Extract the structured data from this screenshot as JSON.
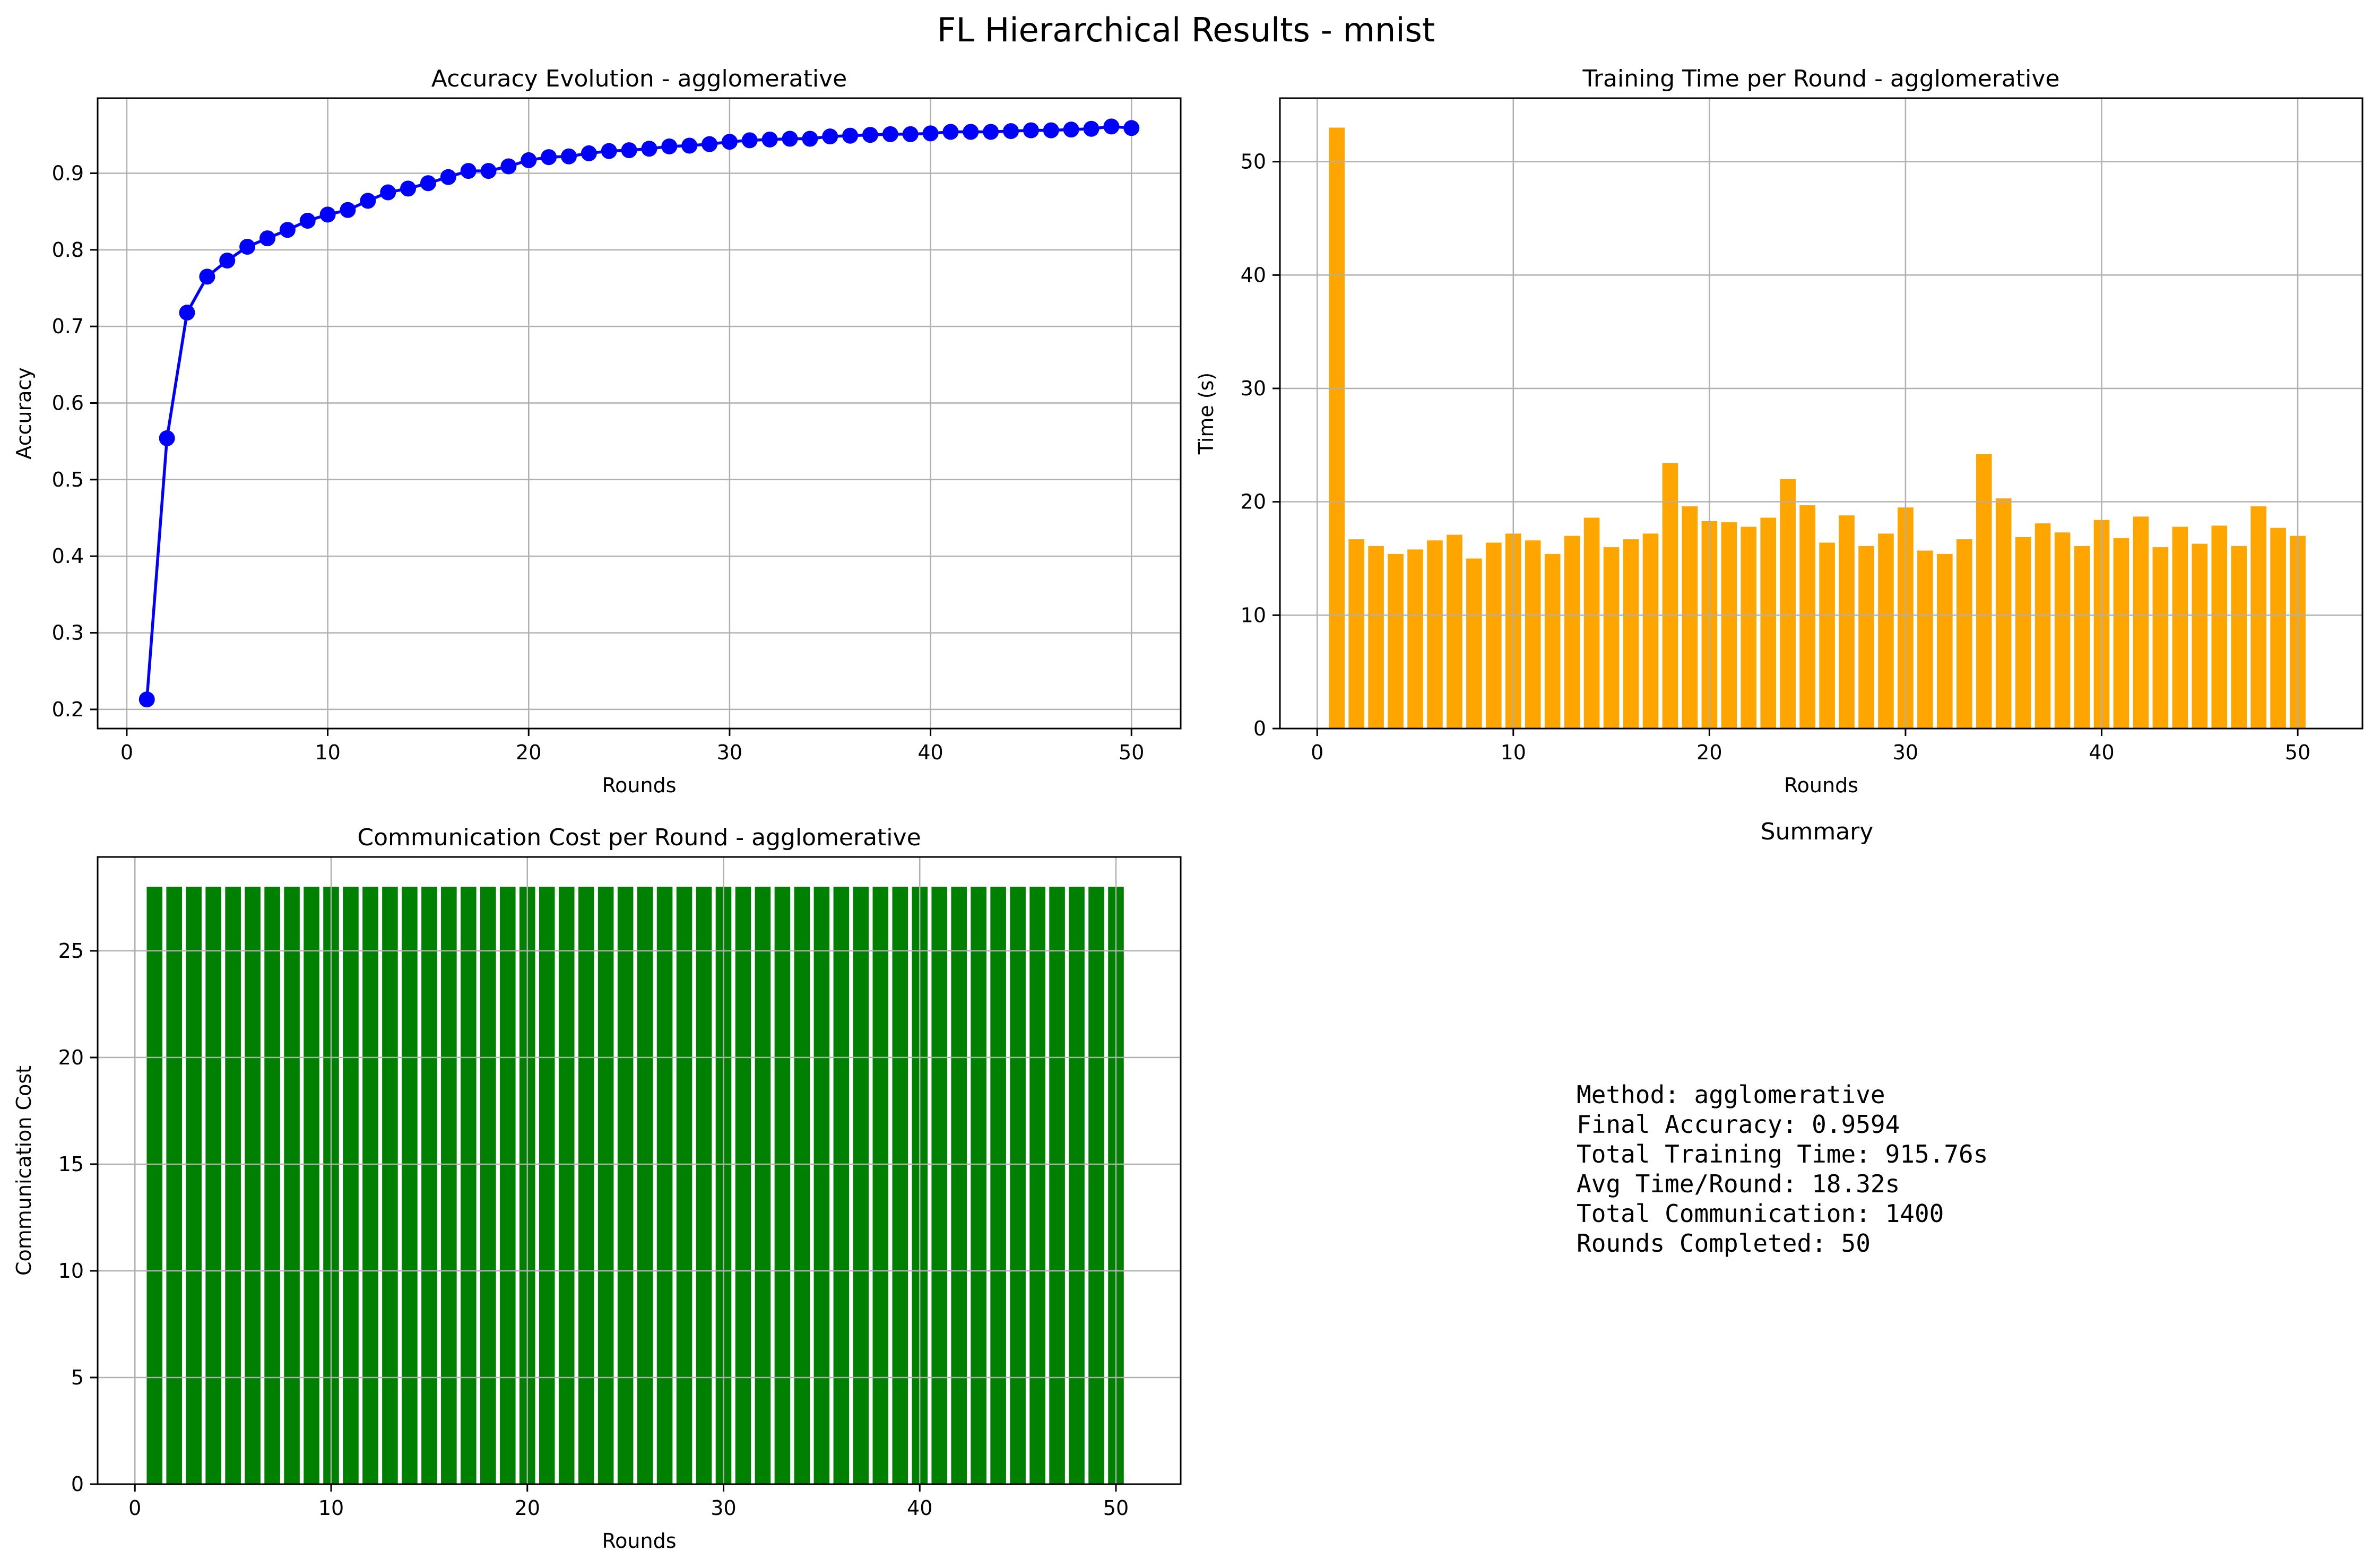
{
  "figure_title": "FL Hierarchical Results - mnist",
  "chart_data": [
    {
      "type": "line",
      "title": "Accuracy Evolution - agglomerative",
      "xlabel": "Rounds",
      "ylabel": "Accuracy",
      "xlim": [
        -1.45,
        52.45
      ],
      "ylim": [
        0.175,
        0.998
      ],
      "xticks": [
        0,
        10,
        20,
        30,
        40,
        50
      ],
      "yticks": [
        0.2,
        0.3,
        0.4,
        0.5,
        0.6,
        0.7,
        0.8,
        0.9
      ],
      "ytick_labels": [
        "0.2",
        "0.3",
        "0.4",
        "0.5",
        "0.6",
        "0.7",
        "0.8",
        "0.9"
      ],
      "grid": true,
      "color": "#0000ff",
      "marker": "circle",
      "x": [
        1,
        2,
        3,
        4,
        5,
        6,
        7,
        8,
        9,
        10,
        11,
        12,
        13,
        14,
        15,
        16,
        17,
        18,
        19,
        20,
        21,
        22,
        23,
        24,
        25,
        26,
        27,
        28,
        29,
        30,
        31,
        32,
        33,
        34,
        35,
        36,
        37,
        38,
        39,
        40,
        41,
        42,
        43,
        44,
        45,
        46,
        47,
        48,
        49,
        50
      ],
      "values": [
        0.213,
        0.554,
        0.718,
        0.765,
        0.786,
        0.804,
        0.815,
        0.826,
        0.838,
        0.846,
        0.852,
        0.864,
        0.875,
        0.88,
        0.887,
        0.895,
        0.903,
        0.903,
        0.909,
        0.917,
        0.921,
        0.922,
        0.926,
        0.929,
        0.93,
        0.932,
        0.935,
        0.936,
        0.938,
        0.941,
        0.943,
        0.944,
        0.945,
        0.945,
        0.948,
        0.949,
        0.95,
        0.951,
        0.951,
        0.952,
        0.954,
        0.954,
        0.954,
        0.955,
        0.956,
        0.956,
        0.957,
        0.958,
        0.961,
        0.959
      ]
    },
    {
      "type": "bar",
      "title": "Training Time per Round - agglomerative",
      "xlabel": "Rounds",
      "ylabel": "Time (s)",
      "xlim": [
        -1.9,
        53.3
      ],
      "ylim": [
        0,
        55.6
      ],
      "xticks": [
        0,
        10,
        20,
        30,
        40,
        50
      ],
      "yticks": [
        0,
        10,
        20,
        30,
        40,
        50
      ],
      "grid": true,
      "color": "#ffa500",
      "x": [
        1,
        2,
        3,
        4,
        5,
        6,
        7,
        8,
        9,
        10,
        11,
        12,
        13,
        14,
        15,
        16,
        17,
        18,
        19,
        20,
        21,
        22,
        23,
        24,
        25,
        26,
        27,
        28,
        29,
        30,
        31,
        32,
        33,
        34,
        35,
        36,
        37,
        38,
        39,
        40,
        41,
        42,
        43,
        44,
        45,
        46,
        47,
        48,
        49,
        50
      ],
      "values": [
        53.0,
        16.7,
        16.1,
        15.4,
        15.8,
        16.6,
        17.1,
        15.0,
        16.4,
        17.2,
        16.6,
        15.4,
        17.0,
        18.6,
        16.0,
        16.7,
        17.2,
        23.4,
        19.6,
        18.3,
        18.2,
        17.8,
        18.6,
        22.0,
        19.7,
        16.4,
        18.8,
        16.1,
        17.2,
        19.5,
        15.7,
        15.4,
        16.7,
        24.2,
        20.3,
        16.9,
        18.1,
        17.3,
        16.1,
        18.4,
        16.8,
        18.7,
        16.0,
        17.8,
        16.3,
        17.9,
        16.1,
        19.6,
        17.7,
        17.0
      ]
    },
    {
      "type": "bar",
      "title": "Communication Cost per Round - agglomerative",
      "xlabel": "Rounds",
      "ylabel": "Communication Cost",
      "xlim": [
        -1.9,
        53.3
      ],
      "ylim": [
        0,
        29.4
      ],
      "xticks": [
        0,
        10,
        20,
        30,
        40,
        50
      ],
      "yticks": [
        0,
        5,
        10,
        15,
        20,
        25
      ],
      "grid": true,
      "color": "#008000",
      "x": [
        1,
        2,
        3,
        4,
        5,
        6,
        7,
        8,
        9,
        10,
        11,
        12,
        13,
        14,
        15,
        16,
        17,
        18,
        19,
        20,
        21,
        22,
        23,
        24,
        25,
        26,
        27,
        28,
        29,
        30,
        31,
        32,
        33,
        34,
        35,
        36,
        37,
        38,
        39,
        40,
        41,
        42,
        43,
        44,
        45,
        46,
        47,
        48,
        49,
        50
      ],
      "values": [
        28,
        28,
        28,
        28,
        28,
        28,
        28,
        28,
        28,
        28,
        28,
        28,
        28,
        28,
        28,
        28,
        28,
        28,
        28,
        28,
        28,
        28,
        28,
        28,
        28,
        28,
        28,
        28,
        28,
        28,
        28,
        28,
        28,
        28,
        28,
        28,
        28,
        28,
        28,
        28,
        28,
        28,
        28,
        28,
        28,
        28,
        28,
        28,
        28,
        28
      ]
    }
  ],
  "summary": {
    "title": "Summary",
    "lines": [
      "Method: agglomerative",
      "Final Accuracy: 0.9594",
      "Total Training Time: 915.76s",
      "Avg Time/Round: 18.32s",
      "Total Communication: 1400",
      "Rounds Completed: 50"
    ]
  }
}
